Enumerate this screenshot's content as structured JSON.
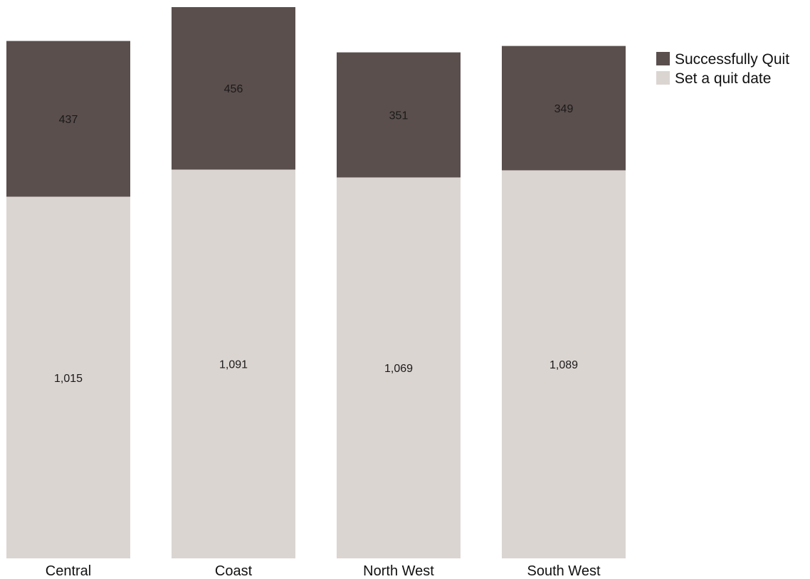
{
  "chart_data": {
    "type": "bar",
    "stacked": true,
    "categories": [
      "Central",
      "Coast",
      "North West",
      "South West"
    ],
    "series": [
      {
        "name": "Set a quit date",
        "values": [
          1015,
          1091,
          1069,
          1089
        ],
        "labels": [
          "1,015",
          "1,091",
          "1,069",
          "1,089"
        ],
        "color": "#dbd5d2"
      },
      {
        "name": "Successfully Quit",
        "values": [
          437,
          456,
          351,
          349
        ],
        "labels": [
          "437",
          "456",
          "351",
          "349"
        ],
        "color": "#5a4f4d"
      }
    ],
    "legend": {
      "position": "top-right",
      "order": [
        "Successfully Quit",
        "Set a quit date"
      ]
    },
    "ylim": [
      0,
      1547
    ],
    "grid": false,
    "axes_visible": false
  }
}
